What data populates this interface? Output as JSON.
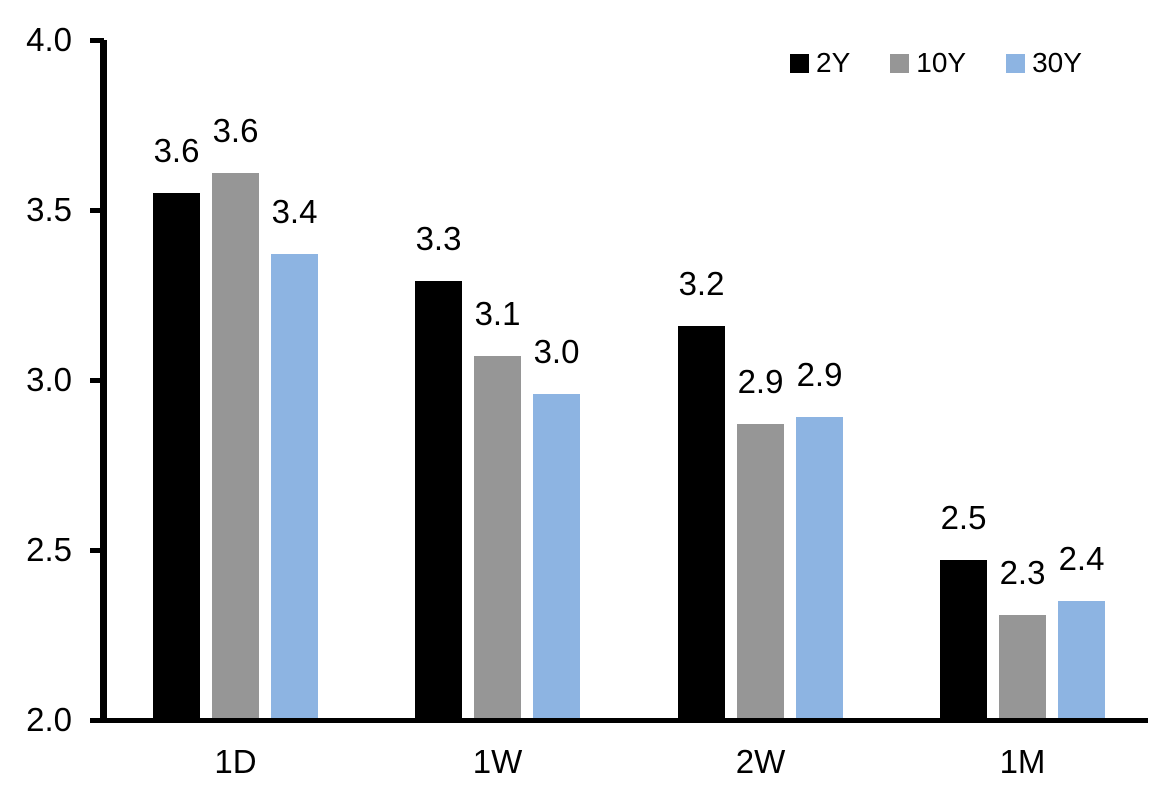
{
  "chart_data": {
    "type": "bar",
    "title": "",
    "xlabel": "",
    "ylabel": "",
    "categories": [
      "1D",
      "1W",
      "2W",
      "1M"
    ],
    "series": [
      {
        "name": "2Y",
        "color": "#000000",
        "values": [
          3.55,
          3.29,
          3.16,
          2.47
        ],
        "labels": [
          "3.6",
          "3.3",
          "3.2",
          "2.5"
        ]
      },
      {
        "name": "10Y",
        "color": "#969696",
        "values": [
          3.61,
          3.07,
          2.87,
          2.31
        ],
        "labels": [
          "3.6",
          "3.1",
          "2.9",
          "2.3"
        ]
      },
      {
        "name": "30Y",
        "color": "#8DB4E2",
        "values": [
          3.37,
          2.96,
          2.89,
          2.35
        ],
        "labels": [
          "3.4",
          "3.0",
          "2.9",
          "2.4"
        ]
      }
    ],
    "y_axis": {
      "min": 2.0,
      "max": 4.0,
      "tick_values": [
        4.0,
        3.5,
        3.0,
        2.5,
        2.0
      ],
      "ticks": [
        "4.0",
        "3.5",
        "3.0",
        "2.5",
        "2.0"
      ]
    },
    "ylim": [
      2.0,
      4.0
    ],
    "grid": false,
    "legend": {
      "position": "top-right",
      "entries": [
        "2Y",
        "10Y",
        "30Y"
      ]
    },
    "background": "#FFFFFF",
    "axis_color": "#000000"
  }
}
